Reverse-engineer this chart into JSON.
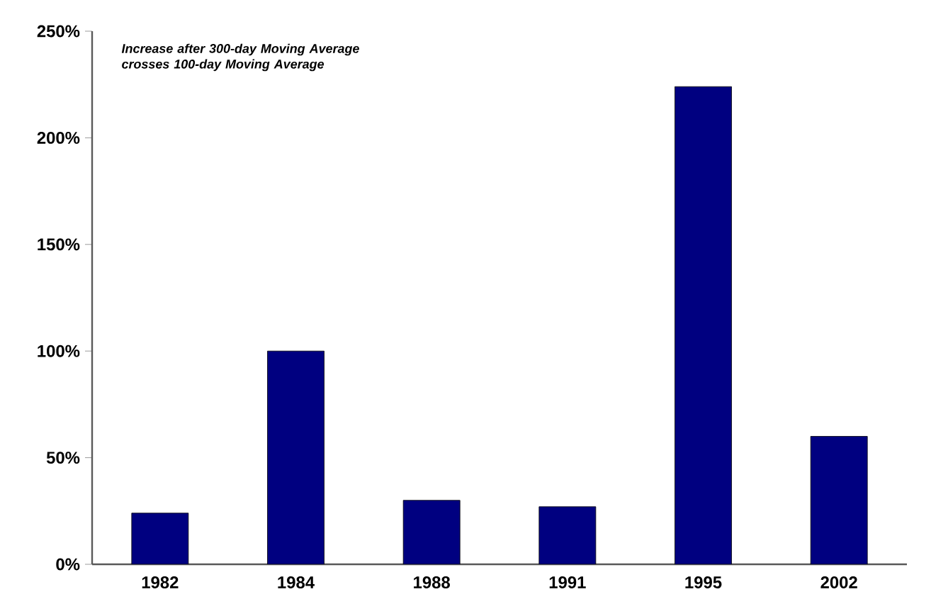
{
  "chart_data": {
    "type": "bar",
    "title": "Increase after 300-day Moving Average crosses 100-day Moving Average",
    "categories": [
      "1982",
      "1984",
      "1988",
      "1991",
      "1995",
      "2002"
    ],
    "values": [
      24,
      100,
      30,
      27,
      224,
      60
    ],
    "color": "#000080",
    "ylim": [
      0,
      250
    ],
    "yticks": [
      {
        "value": 0,
        "label": "0%"
      },
      {
        "value": 50,
        "label": "50%"
      },
      {
        "value": 100,
        "label": "100%"
      },
      {
        "value": 150,
        "label": "150%"
      },
      {
        "value": 200,
        "label": "200%"
      },
      {
        "value": 250,
        "label": "250%"
      }
    ],
    "grid": false
  }
}
